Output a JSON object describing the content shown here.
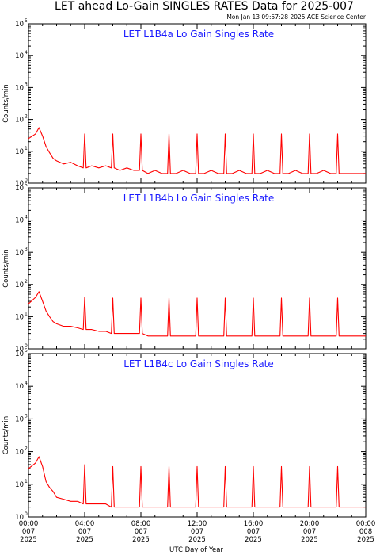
{
  "figure": {
    "title": "LET ahead Lo-Gain SINGLES RATES Data for 2025-007",
    "timestamp": "Mon Jan 13 09:57:28 2025 ACE Science Center"
  },
  "chart_data": [
    {
      "type": "line",
      "title": "LET L1B4a Lo Gain Singles Rate",
      "xlabel": "",
      "ylabel": "Counts/min",
      "yscale": "log",
      "ylim": [
        1,
        100000
      ],
      "xlim_hours": [
        0,
        24
      ],
      "series": [
        {
          "x_hours": [
            0,
            0.5,
            0.75,
            1,
            1.25,
            1.5,
            1.75,
            2,
            2.5,
            3,
            3.5,
            3.9,
            4,
            4.1,
            4.5,
            5,
            5.5,
            5.9,
            6,
            6.1,
            6.5,
            7,
            7.5,
            7.9,
            8,
            8.1,
            8.5,
            9,
            9.5,
            9.9,
            10,
            10.1,
            10.5,
            11,
            11.5,
            11.9,
            12,
            12.1,
            12.5,
            13,
            13.5,
            13.9,
            14,
            14.1,
            14.5,
            15,
            15.5,
            15.9,
            16,
            16.1,
            16.5,
            17,
            17.5,
            17.9,
            18,
            18.1,
            18.5,
            19,
            19.5,
            19.9,
            20,
            20.1,
            20.5,
            21,
            21.5,
            21.9,
            22,
            22.1,
            22.5,
            23,
            23.5,
            23.9,
            24
          ],
          "values": [
            25,
            35,
            55,
            30,
            14,
            9,
            6,
            5,
            4,
            4.5,
            3.5,
            3,
            35,
            3,
            3.5,
            3,
            3.5,
            3,
            35,
            3,
            2.5,
            3,
            2.5,
            2.5,
            35,
            2.5,
            2,
            2.5,
            2,
            2,
            35,
            2,
            2,
            2.5,
            2,
            2,
            35,
            2,
            2,
            2.5,
            2,
            2,
            35,
            2,
            2,
            2.5,
            2,
            2,
            35,
            2,
            2,
            2.5,
            2,
            2,
            35,
            2,
            2,
            2.5,
            2,
            2,
            35,
            2,
            2,
            2.5,
            2,
            2,
            35,
            2,
            2,
            2,
            2,
            2,
            2
          ]
        }
      ]
    },
    {
      "type": "line",
      "title": "LET L1B4b Lo Gain Singles Rate",
      "xlabel": "",
      "ylabel": "Counts/min",
      "yscale": "log",
      "ylim": [
        1,
        100000
      ],
      "xlim_hours": [
        0,
        24
      ],
      "series": [
        {
          "x_hours": [
            0,
            0.5,
            0.75,
            1,
            1.25,
            1.5,
            1.75,
            2,
            2.5,
            3,
            3.5,
            3.9,
            4,
            4.1,
            4.5,
            5,
            5.5,
            5.9,
            6,
            6.1,
            6.5,
            7,
            7.5,
            7.9,
            8,
            8.1,
            8.5,
            9,
            9.5,
            9.9,
            10,
            10.1,
            10.5,
            11,
            11.5,
            11.9,
            12,
            12.1,
            12.5,
            13,
            13.5,
            13.9,
            14,
            14.1,
            14.5,
            15,
            15.5,
            15.9,
            16,
            16.1,
            16.5,
            17,
            17.5,
            17.9,
            18,
            18.1,
            18.5,
            19,
            19.5,
            19.9,
            20,
            20.1,
            20.5,
            21,
            21.5,
            21.9,
            22,
            22.1,
            22.5,
            23,
            23.5,
            23.9,
            24
          ],
          "values": [
            25,
            40,
            60,
            30,
            15,
            10,
            7,
            6,
            5,
            5,
            4.5,
            4,
            40,
            4,
            4,
            3.5,
            3.5,
            3,
            38,
            3,
            3,
            3,
            3,
            3,
            38,
            3,
            2.5,
            2.5,
            2.5,
            2.5,
            38,
            2.5,
            2.5,
            2.5,
            2.5,
            2.5,
            38,
            2.5,
            2.5,
            2.5,
            2.5,
            2.5,
            38,
            2.5,
            2.5,
            2.5,
            2.5,
            2.5,
            38,
            2.5,
            2.5,
            2.5,
            2.5,
            2.5,
            38,
            2.5,
            2.5,
            2.5,
            2.5,
            2.5,
            38,
            2.5,
            2.5,
            2.5,
            2.5,
            2.5,
            38,
            2.5,
            2.5,
            2.5,
            2.5,
            2.5,
            2.5
          ]
        }
      ]
    },
    {
      "type": "line",
      "title": "LET L1B4c Lo Gain Singles Rate",
      "xlabel": "UTC Day of Year",
      "ylabel": "Counts/min",
      "yscale": "log",
      "ylim": [
        1,
        100000
      ],
      "xlim_hours": [
        0,
        24
      ],
      "xticks": [
        {
          "hour": 0,
          "time": "00:00",
          "day": "007",
          "year": "2025"
        },
        {
          "hour": 4,
          "time": "04:00",
          "day": "007",
          "year": "2025"
        },
        {
          "hour": 8,
          "time": "08:00",
          "day": "007",
          "year": "2025"
        },
        {
          "hour": 12,
          "time": "12:00",
          "day": "007",
          "year": "2025"
        },
        {
          "hour": 16,
          "time": "16:00",
          "day": "007",
          "year": "2025"
        },
        {
          "hour": 20,
          "time": "20:00",
          "day": "007",
          "year": "2025"
        },
        {
          "hour": 24,
          "time": "00:00",
          "day": "008",
          "year": "2025"
        }
      ],
      "series": [
        {
          "x_hours": [
            0,
            0.5,
            0.75,
            1,
            1.25,
            1.5,
            1.75,
            2,
            2.5,
            3,
            3.5,
            3.9,
            4,
            4.1,
            4.5,
            5,
            5.5,
            5.9,
            6,
            6.1,
            6.5,
            7,
            7.5,
            7.9,
            8,
            8.1,
            8.5,
            9,
            9.5,
            9.9,
            10,
            10.1,
            10.5,
            11,
            11.5,
            11.9,
            12,
            12.1,
            12.5,
            13,
            13.5,
            13.9,
            14,
            14.1,
            14.5,
            15,
            15.5,
            15.9,
            16,
            16.1,
            16.5,
            17,
            17.5,
            17.9,
            18,
            18.1,
            18.5,
            19,
            19.5,
            19.9,
            20,
            20.1,
            20.5,
            21,
            21.5,
            21.9,
            22,
            22.1,
            22.5,
            23,
            23.5,
            23.9,
            24
          ],
          "values": [
            30,
            45,
            70,
            35,
            12,
            8,
            6,
            4,
            3.5,
            3,
            3,
            2.5,
            40,
            2.5,
            2.5,
            2.5,
            2.5,
            2,
            35,
            2,
            2,
            2,
            2,
            2,
            35,
            2,
            2,
            2,
            2,
            2,
            35,
            2,
            2,
            2,
            2,
            2,
            35,
            2,
            2,
            2,
            2,
            2,
            35,
            2,
            2,
            2,
            2,
            2,
            35,
            2,
            2,
            2,
            2,
            2,
            35,
            2,
            2,
            2,
            2,
            2,
            35,
            2,
            2,
            2,
            2,
            2,
            35,
            2,
            2,
            2,
            2,
            2,
            2
          ]
        }
      ]
    }
  ]
}
